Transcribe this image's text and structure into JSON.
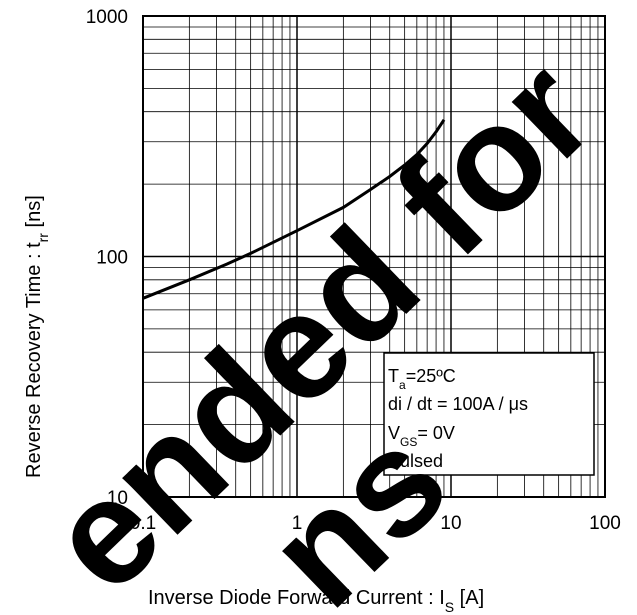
{
  "chart_data": {
    "type": "line",
    "xscale": "log",
    "yscale": "log",
    "xlim": [
      0.1,
      100
    ],
    "ylim": [
      10,
      1000
    ],
    "grid": true,
    "xticks": [
      "0.1",
      "1",
      "10",
      "100"
    ],
    "yticks": [
      "10",
      "100",
      "1000"
    ],
    "xlabel": {
      "main": "Inverse Diode  Forward Current : I",
      "sub": "S",
      "unit": " [A]"
    },
    "ylabel": {
      "main": "Reverse Recovery Time : t",
      "sub": "rr",
      "unit": " [ns]"
    },
    "series": [
      {
        "x": [
          0.1,
          0.2,
          0.35,
          0.5,
          1.0,
          2.0,
          3.0,
          4.0,
          5.0,
          6.0,
          7.0,
          8.0,
          9.0
        ],
        "y": [
          67,
          80,
          93,
          103,
          128,
          160,
          190,
          215,
          240,
          265,
          295,
          330,
          370
        ]
      }
    ],
    "annotation": {
      "line1": {
        "main": "T",
        "sub": "a",
        "rest": "=25ºC"
      },
      "line2": "di / dt = 100A / μs",
      "line3": {
        "main": "V",
        "sub": "GS",
        "rest": "= 0V"
      },
      "line4": "Pulsed"
    }
  },
  "watermark": {
    "line1": "ended for",
    "line2": "ns"
  },
  "colors": {
    "line": "#000000",
    "grid": "#000000",
    "background": "#ffffff"
  }
}
